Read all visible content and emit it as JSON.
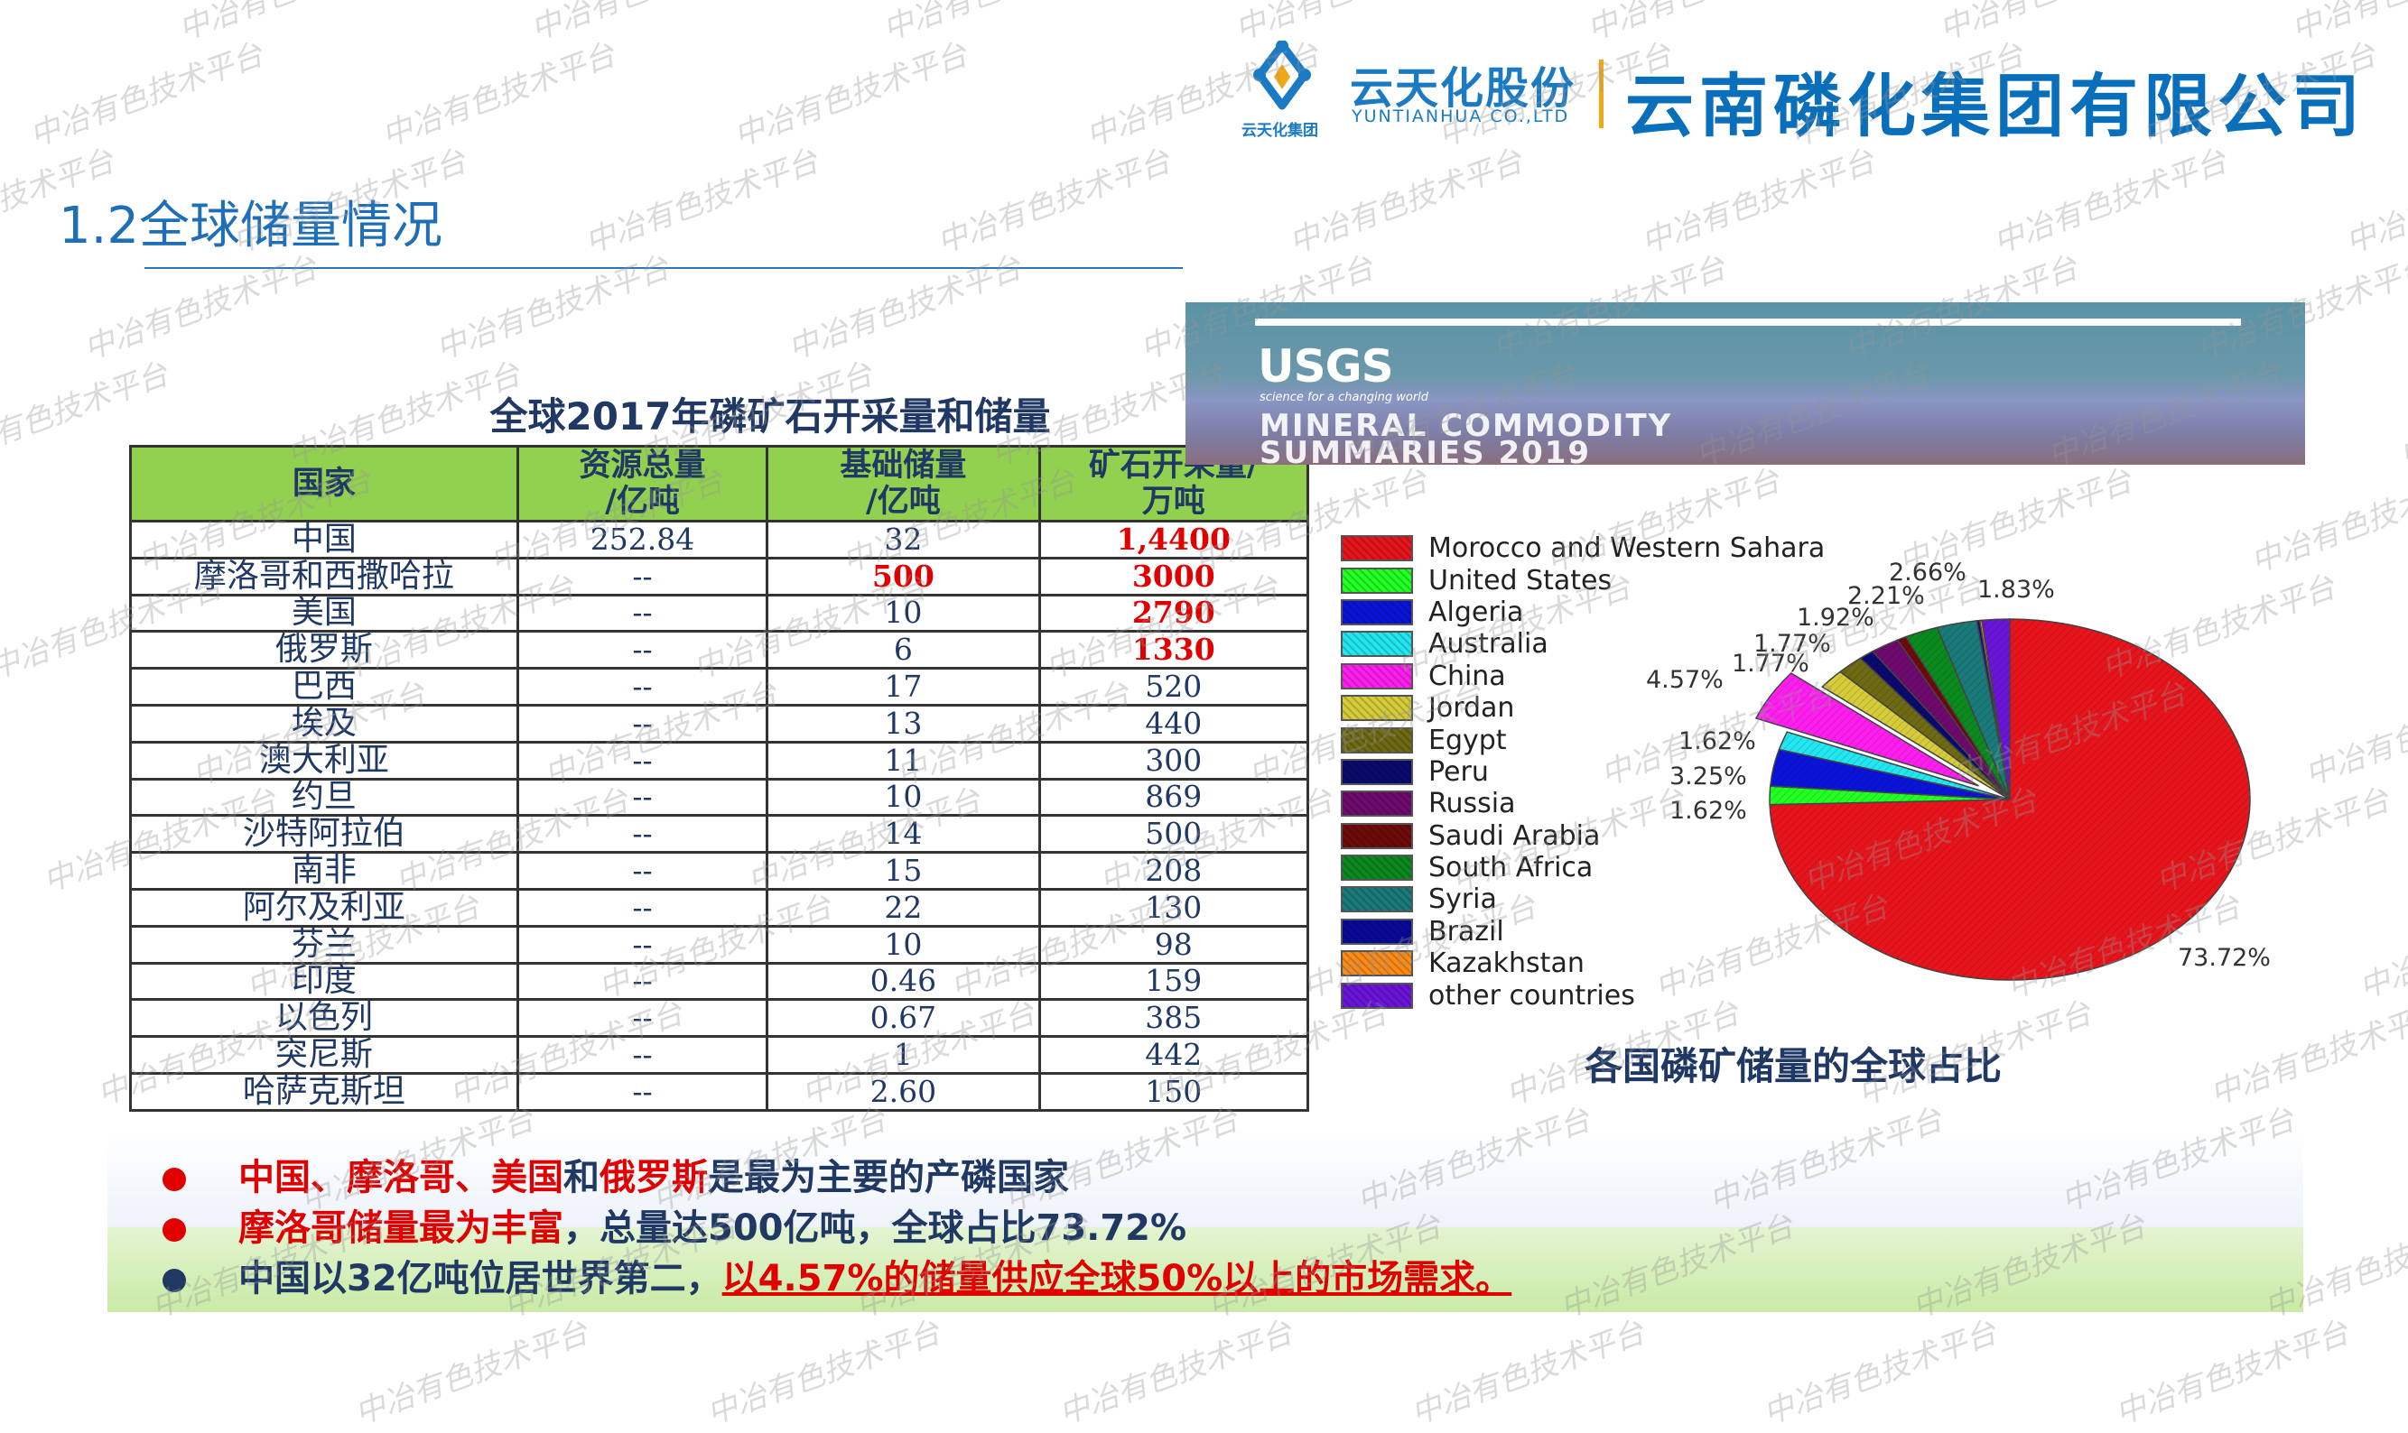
{
  "header": {
    "logo_cn": "云天化股份",
    "logo_en": "YUNTIANHUA CO.,LTD",
    "logo_group": "云天化集团",
    "company": "云南磷化集团有限公司"
  },
  "page_title": "1.2全球储量情况",
  "table": {
    "title": "全球2017年磷矿石开采量和储量",
    "headers": [
      "国家",
      "资源总量/亿吨",
      "基础储量/亿吨",
      "矿石开采量/万吨"
    ],
    "rows": [
      [
        "中国",
        "252.84",
        "32",
        "1,4400"
      ],
      [
        "摩洛哥和西撒哈拉",
        "--",
        "500",
        "3000"
      ],
      [
        "美国",
        "--",
        "10",
        "2790"
      ],
      [
        "俄罗斯",
        "--",
        "6",
        "1330"
      ],
      [
        "巴西",
        "--",
        "17",
        "520"
      ],
      [
        "埃及",
        "--",
        "13",
        "440"
      ],
      [
        "澳大利亚",
        "--",
        "11",
        "300"
      ],
      [
        "约旦",
        "--",
        "10",
        "869"
      ],
      [
        "沙特阿拉伯",
        "--",
        "14",
        "500"
      ],
      [
        "南非",
        "--",
        "15",
        "208"
      ],
      [
        "阿尔及利亚",
        "--",
        "22",
        "130"
      ],
      [
        "芬兰",
        "--",
        "10",
        "98"
      ],
      [
        "印度",
        "--",
        "0.46",
        "159"
      ],
      [
        "以色列",
        "--",
        "0.67",
        "385"
      ],
      [
        "突尼斯",
        "--",
        "1",
        "442"
      ],
      [
        "哈萨克斯坦",
        "--",
        "2.60",
        "150"
      ]
    ]
  },
  "usgs": {
    "logo": "USGS",
    "tagline": "science for a changing world",
    "title_line1": "MINERAL COMMODITY",
    "title_line2": "SUMMARIES 2019"
  },
  "chart_data": {
    "type": "pie",
    "title": "各国磷矿储量的全球占比",
    "legend_position": "left",
    "start": "top",
    "direction": "clockwise",
    "slices": [
      {
        "name": "Morocco and Western Sahara",
        "value": 73.72,
        "label": "73.72%",
        "color": "#e8141c"
      },
      {
        "name": "United States",
        "value": 1.62,
        "label": "1.62%",
        "color": "#22ff22"
      },
      {
        "name": "Algeria",
        "value": 3.25,
        "label": "3.25%",
        "color": "#0a14d8"
      },
      {
        "name": "Australia",
        "value": 1.62,
        "label": "1.62%",
        "color": "#22e6f0"
      },
      {
        "name": "China",
        "value": 4.57,
        "label": "4.57%",
        "color": "#ff1ef0",
        "exploded": true
      },
      {
        "name": "Jordan",
        "value": 1.77,
        "label": "1.77%",
        "color": "#d6cc3a"
      },
      {
        "name": "Egypt",
        "value": 1.77,
        "label": "1.77%",
        "color": "#6e6a14"
      },
      {
        "name": "Peru",
        "value": 1.0,
        "color": "#0a0a6e"
      },
      {
        "name": "Russia",
        "value": 1.92,
        "label": "1.92%",
        "color": "#6e0a6e"
      },
      {
        "name": "Saudi Arabia",
        "value": 0.6,
        "color": "#6e0a0a"
      },
      {
        "name": "South Africa",
        "value": 2.21,
        "label": "2.21%",
        "color": "#0a8a1e"
      },
      {
        "name": "Syria",
        "value": 2.66,
        "label": "2.66%",
        "color": "#1a7a7a"
      },
      {
        "name": "Brazil",
        "value": 0.2,
        "color": "#0a0a9a"
      },
      {
        "name": "Kazakhstan",
        "value": 0.15,
        "color": "#ff8a14"
      },
      {
        "name": "other countries",
        "value": 1.83,
        "label": "1.83%",
        "color": "#6a14d8"
      }
    ]
  },
  "bullets": [
    {
      "color": "#e00000",
      "parts": [
        {
          "t": "中国、摩洛哥、美国",
          "red": true
        },
        {
          "t": "和"
        },
        {
          "t": "俄罗斯",
          "red": true
        },
        {
          "t": "是最为主要的产磷国家"
        }
      ]
    },
    {
      "color": "#e00000",
      "parts": [
        {
          "t": "摩洛哥储量最为丰富",
          "red": true
        },
        {
          "t": "，总量达500亿吨，全球占比73.72%"
        }
      ]
    },
    {
      "color": "#1f3864",
      "parts": [
        {
          "t": "中国以32亿吨位居世界第二，"
        },
        {
          "t": "以4.57%的储量供应全球50%以上的市场需求。",
          "red": true,
          "u": true
        }
      ]
    }
  ],
  "watermark": "中冶有色技术平台"
}
